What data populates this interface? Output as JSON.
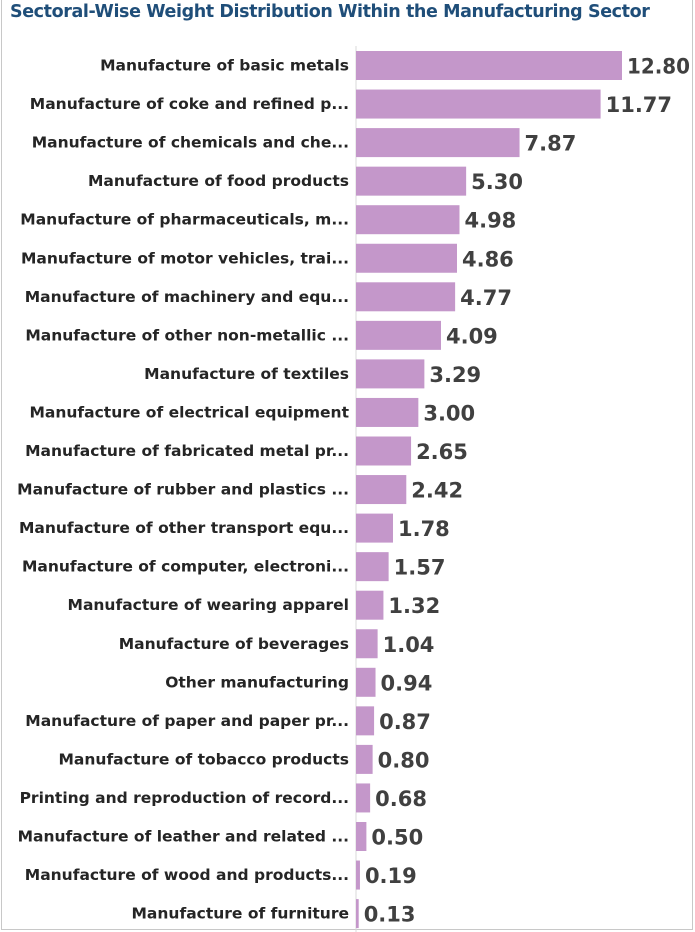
{
  "chart_data": {
    "type": "bar",
    "orientation": "horizontal",
    "title": "Sectoral-Wise Weight Distribution Within the Manufacturing Sector",
    "xlabel": "",
    "ylabel": "",
    "xlim": [
      0,
      12.8
    ],
    "grid": false,
    "bar_color": "#c497ca",
    "title_color": "#1f4e79",
    "categories": [
      "Manufacture of basic metals",
      "Manufacture of coke and refined p...",
      "Manufacture of chemicals and che...",
      "Manufacture of food products",
      "Manufacture of pharmaceuticals, m...",
      "Manufacture of motor vehicles, trai...",
      "Manufacture of machinery and equ...",
      "Manufacture of other non-metallic ...",
      "Manufacture of textiles",
      "Manufacture of electrical equipment",
      "Manufacture of fabricated metal pr...",
      "Manufacture of rubber and plastics ...",
      "Manufacture of other transport equ...",
      "Manufacture of computer, electroni...",
      "Manufacture of wearing apparel",
      "Manufacture of beverages",
      "Other manufacturing",
      "Manufacture of paper and paper pr...",
      "Manufacture of tobacco products",
      "Printing and reproduction of record...",
      "Manufacture of leather and related ...",
      "Manufacture of wood and products...",
      "Manufacture of furniture"
    ],
    "values": [
      12.8,
      11.77,
      7.87,
      5.3,
      4.98,
      4.86,
      4.77,
      4.09,
      3.29,
      3.0,
      2.65,
      2.42,
      1.78,
      1.57,
      1.32,
      1.04,
      0.94,
      0.87,
      0.8,
      0.68,
      0.5,
      0.19,
      0.13
    ],
    "value_labels": [
      "12.80",
      "11.77",
      "7.87",
      "5.30",
      "4.98",
      "4.86",
      "4.77",
      "4.09",
      "3.29",
      "3.00",
      "2.65",
      "2.42",
      "1.78",
      "1.57",
      "1.32",
      "1.04",
      "0.94",
      "0.87",
      "0.80",
      "0.68",
      "0.50",
      "0.19",
      "0.13"
    ]
  }
}
